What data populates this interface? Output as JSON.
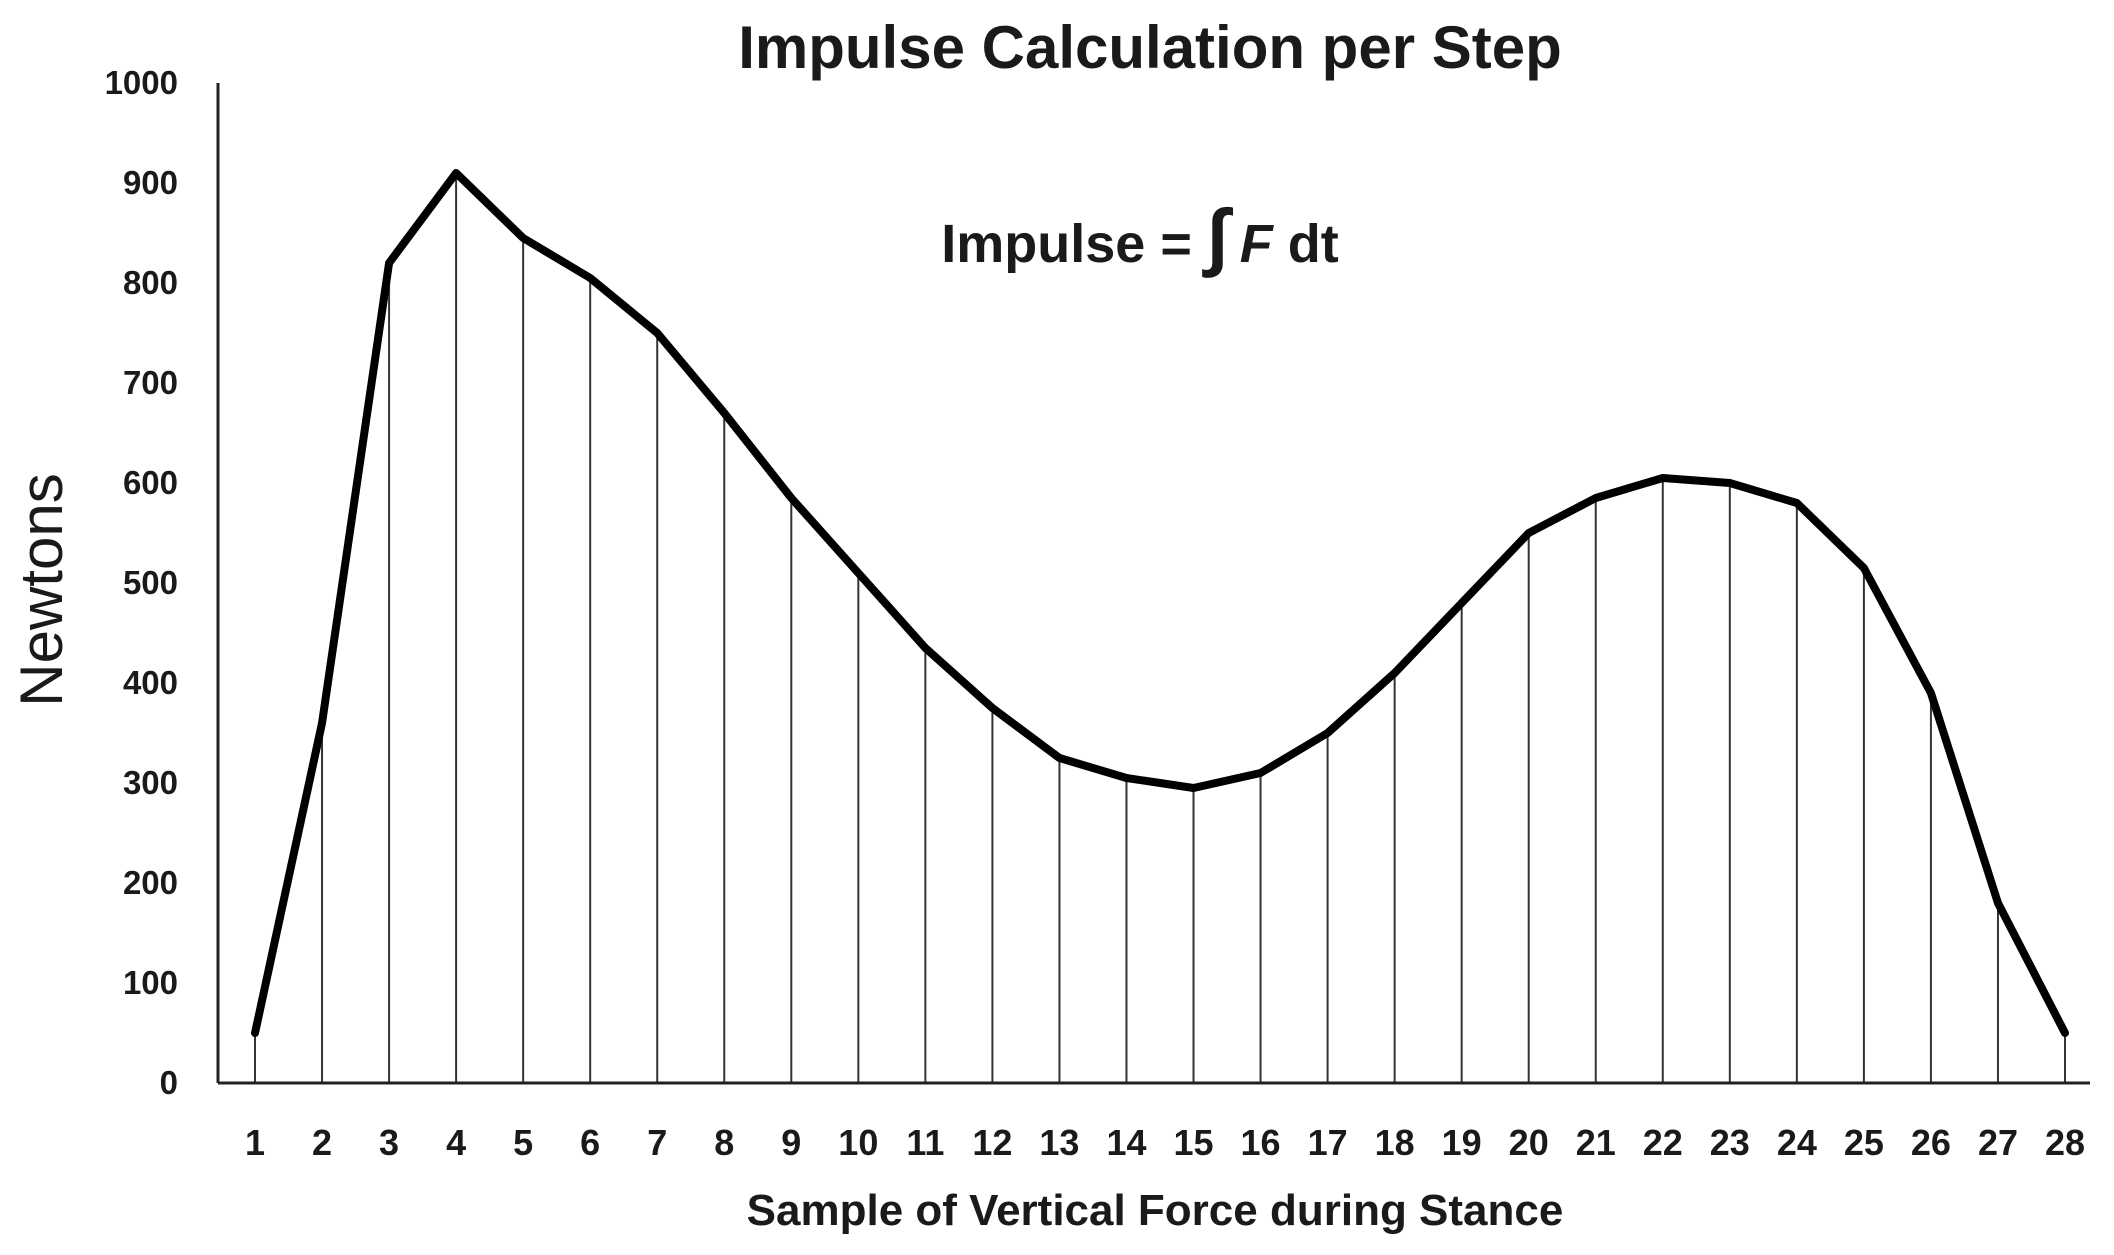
{
  "chart_data": {
    "type": "line",
    "title": "Impulse Calculation per Step",
    "annotation": {
      "prefix": "Impulse = ",
      "integral": "∫",
      "variable": "F",
      "suffix": " dt"
    },
    "xlabel": "Sample of Vertical  Force during Stance",
    "ylabel": "Newtons",
    "ylim": [
      0,
      1000
    ],
    "yticks": [
      0,
      100,
      200,
      300,
      400,
      500,
      600,
      700,
      800,
      900,
      1000
    ],
    "categories": [
      "1",
      "2",
      "3",
      "4",
      "5",
      "6",
      "7",
      "8",
      "9",
      "10",
      "11",
      "12",
      "13",
      "14",
      "15",
      "16",
      "17",
      "18",
      "19",
      "20",
      "21",
      "22",
      "23",
      "24",
      "25",
      "26",
      "27",
      "28"
    ],
    "values": [
      50,
      360,
      820,
      910,
      845,
      805,
      750,
      670,
      585,
      510,
      435,
      375,
      325,
      305,
      295,
      310,
      350,
      410,
      480,
      550,
      585,
      605,
      600,
      580,
      515,
      390,
      180,
      50
    ],
    "vertical_lines": true,
    "grid": false,
    "series_color": "#000000"
  }
}
